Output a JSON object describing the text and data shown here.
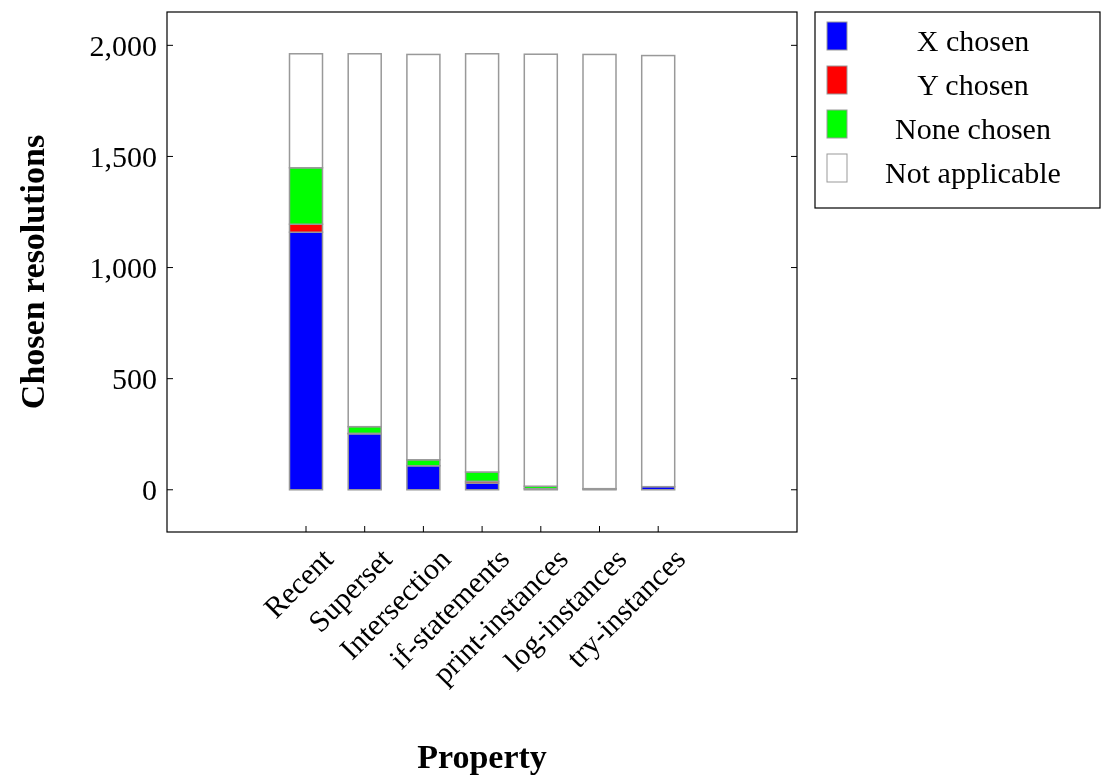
{
  "chart_data": {
    "type": "bar",
    "stacked": true,
    "xlabel": "Property",
    "ylabel": "Chosen resolutions",
    "categories": [
      "Recent",
      "Superset",
      "Intersection",
      "if-statements",
      "print-instances",
      "log-instances",
      "try-instances"
    ],
    "series": [
      {
        "name": "X chosen",
        "color": "#0000ff",
        "values": [
          1159,
          252,
          108,
          30,
          5,
          4,
          14
        ]
      },
      {
        "name": "Y chosen",
        "color": "#ff0000",
        "values": [
          36,
          2,
          null,
          8,
          null,
          1,
          null
        ]
      },
      {
        "name": "None chosen",
        "color": "#00ff00",
        "values": [
          254,
          30,
          27,
          42,
          11,
          null,
          null
        ]
      },
      {
        "name": "Not applicable",
        "color": "#ffffff",
        "values": [
          513,
          1678,
          1824,
          1882,
          1944,
          1954,
          1940
        ]
      }
    ],
    "ylim": [
      -190,
      2150
    ],
    "yticks": [
      0,
      500,
      {
        "value": 1000,
        "label": "1,000"
      },
      {
        "value": 1500,
        "label": "1,500"
      },
      {
        "value": 2000,
        "label": "2,000"
      }
    ],
    "legend": "right"
  }
}
